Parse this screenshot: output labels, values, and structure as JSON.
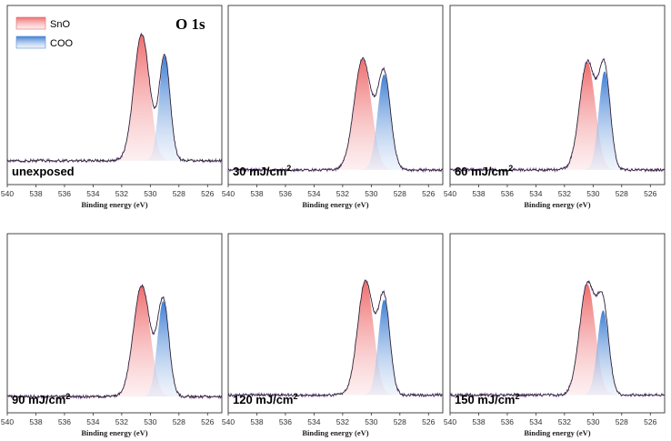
{
  "chart_data": {
    "type": "line",
    "title": "O 1s",
    "xlabel": "Binding energy (eV)",
    "xlim": [
      540,
      525
    ],
    "x_reversed": true,
    "xticks": [
      "540",
      "538",
      "536",
      "534",
      "532",
      "530",
      "528",
      "526"
    ],
    "legend": {
      "position": "top-left",
      "entries": [
        "SnO",
        "COO"
      ]
    },
    "colors": {
      "SnO": "#f08a8a",
      "COO": "#5b8fd6",
      "spectrum": "#8a5fa8",
      "envelope": "#222222"
    },
    "panels": [
      {
        "label": "unexposed",
        "baseline": 0.12,
        "SnO": {
          "center": 530.6,
          "sigma": 0.55,
          "height": 0.82
        },
        "COO": {
          "center": 529.0,
          "sigma": 0.38,
          "height": 0.68
        }
      },
      {
        "label": "30 mJ/cm",
        "sup": "2",
        "baseline": 0.06,
        "SnO": {
          "center": 530.6,
          "sigma": 0.6,
          "height": 0.72
        },
        "COO": {
          "center": 529.1,
          "sigma": 0.45,
          "height": 0.62
        }
      },
      {
        "label": "60 mJ/cm",
        "sup": "2",
        "baseline": 0.06,
        "SnO": {
          "center": 530.4,
          "sigma": 0.55,
          "height": 0.7
        },
        "COO": {
          "center": 529.2,
          "sigma": 0.4,
          "height": 0.64
        }
      },
      {
        "label": "90 mJ/cm",
        "sup": "2",
        "baseline": 0.07,
        "SnO": {
          "center": 530.6,
          "sigma": 0.58,
          "height": 0.72
        },
        "COO": {
          "center": 529.1,
          "sigma": 0.4,
          "height": 0.62
        }
      },
      {
        "label": "120 mJ/cm",
        "sup": "2",
        "baseline": 0.08,
        "SnO": {
          "center": 530.4,
          "sigma": 0.55,
          "height": 0.74
        },
        "COO": {
          "center": 529.1,
          "sigma": 0.4,
          "height": 0.62
        }
      },
      {
        "label": "150 mJ/cm",
        "sup": "2",
        "baseline": 0.08,
        "SnO": {
          "center": 530.4,
          "sigma": 0.55,
          "height": 0.72
        },
        "COO": {
          "center": 529.3,
          "sigma": 0.4,
          "height": 0.55
        }
      }
    ]
  }
}
